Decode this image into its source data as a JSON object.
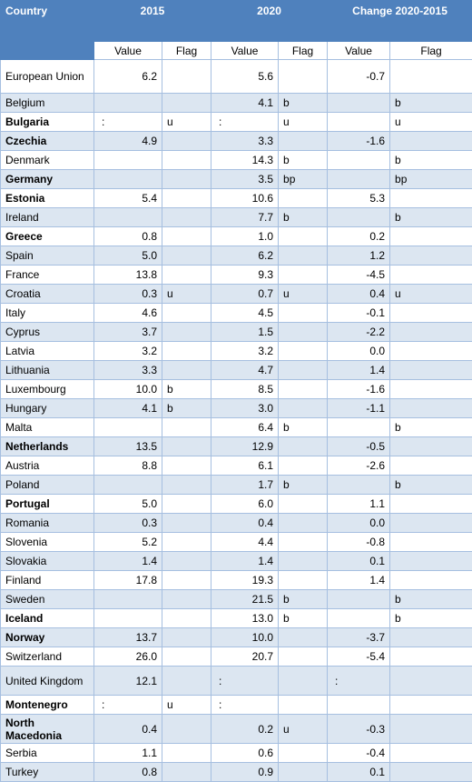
{
  "header": {
    "country": "Country",
    "group_2015": "2015",
    "group_2020": "2020",
    "group_change": "Change 2020-2015",
    "value": "Value",
    "flag": "Flag"
  },
  "rows": [
    {
      "country": "European Union",
      "bold": false,
      "v2015": "6.2",
      "f2015": "",
      "v2020": "5.6",
      "f2020": "",
      "change": "-0.7",
      "fchange": ""
    },
    {
      "country": "Belgium",
      "bold": false,
      "v2015": "",
      "f2015": "",
      "v2020": "4.1",
      "f2020": "b",
      "change": "",
      "fchange": "b"
    },
    {
      "country": "Bulgaria",
      "bold": true,
      "v2015": ":",
      "f2015": "u",
      "v2020": ":",
      "f2020": "u",
      "change": "",
      "fchange": "u"
    },
    {
      "country": "Czechia",
      "bold": true,
      "v2015": "4.9",
      "f2015": "",
      "v2020": "3.3",
      "f2020": "",
      "change": "-1.6",
      "fchange": ""
    },
    {
      "country": "Denmark",
      "bold": false,
      "v2015": "",
      "f2015": "",
      "v2020": "14.3",
      "f2020": "b",
      "change": "",
      "fchange": "b"
    },
    {
      "country": "Germany",
      "bold": true,
      "v2015": "",
      "f2015": "",
      "v2020": "3.5",
      "f2020": "bp",
      "change": "",
      "fchange": "bp"
    },
    {
      "country": "Estonia",
      "bold": true,
      "v2015": "5.4",
      "f2015": "",
      "v2020": "10.6",
      "f2020": "",
      "change": "5.3",
      "fchange": ""
    },
    {
      "country": "Ireland",
      "bold": false,
      "v2015": "",
      "f2015": "",
      "v2020": "7.7",
      "f2020": "b",
      "change": "",
      "fchange": "b"
    },
    {
      "country": "Greece",
      "bold": true,
      "v2015": "0.8",
      "f2015": "",
      "v2020": "1.0",
      "f2020": "",
      "change": "0.2",
      "fchange": ""
    },
    {
      "country": "Spain",
      "bold": false,
      "v2015": "5.0",
      "f2015": "",
      "v2020": "6.2",
      "f2020": "",
      "change": "1.2",
      "fchange": ""
    },
    {
      "country": "France",
      "bold": false,
      "v2015": "13.8",
      "f2015": "",
      "v2020": "9.3",
      "f2020": "",
      "change": "-4.5",
      "fchange": ""
    },
    {
      "country": "Croatia",
      "bold": false,
      "v2015": "0.3",
      "f2015": "u",
      "v2020": "0.7",
      "f2020": "u",
      "change": "0.4",
      "fchange": "u"
    },
    {
      "country": "Italy",
      "bold": false,
      "v2015": "4.6",
      "f2015": "",
      "v2020": "4.5",
      "f2020": "",
      "change": "-0.1",
      "fchange": ""
    },
    {
      "country": "Cyprus",
      "bold": false,
      "v2015": "3.7",
      "f2015": "",
      "v2020": "1.5",
      "f2020": "",
      "change": "-2.2",
      "fchange": ""
    },
    {
      "country": "Latvia",
      "bold": false,
      "v2015": "3.2",
      "f2015": "",
      "v2020": "3.2",
      "f2020": "",
      "change": "0.0",
      "fchange": ""
    },
    {
      "country": "Lithuania",
      "bold": false,
      "v2015": "3.3",
      "f2015": "",
      "v2020": "4.7",
      "f2020": "",
      "change": "1.4",
      "fchange": ""
    },
    {
      "country": "Luxembourg",
      "bold": false,
      "v2015": "10.0",
      "f2015": "b",
      "v2020": "8.5",
      "f2020": "",
      "change": "-1.6",
      "fchange": ""
    },
    {
      "country": "Hungary",
      "bold": false,
      "v2015": "4.1",
      "f2015": "b",
      "v2020": "3.0",
      "f2020": "",
      "change": "-1.1",
      "fchange": ""
    },
    {
      "country": "Malta",
      "bold": false,
      "v2015": "",
      "f2015": "",
      "v2020": "6.4",
      "f2020": "b",
      "change": "",
      "fchange": "b"
    },
    {
      "country": "Netherlands",
      "bold": true,
      "v2015": "13.5",
      "f2015": "",
      "v2020": "12.9",
      "f2020": "",
      "change": "-0.5",
      "fchange": ""
    },
    {
      "country": "Austria",
      "bold": false,
      "v2015": "8.8",
      "f2015": "",
      "v2020": "6.1",
      "f2020": "",
      "change": "-2.6",
      "fchange": ""
    },
    {
      "country": "Poland",
      "bold": false,
      "v2015": "",
      "f2015": "",
      "v2020": "1.7",
      "f2020": "b",
      "change": "",
      "fchange": "b"
    },
    {
      "country": "Portugal",
      "bold": true,
      "v2015": "5.0",
      "f2015": "",
      "v2020": "6.0",
      "f2020": "",
      "change": "1.1",
      "fchange": ""
    },
    {
      "country": "Romania",
      "bold": false,
      "v2015": "0.3",
      "f2015": "",
      "v2020": "0.4",
      "f2020": "",
      "change": "0.0",
      "fchange": ""
    },
    {
      "country": "Slovenia",
      "bold": false,
      "v2015": "5.2",
      "f2015": "",
      "v2020": "4.4",
      "f2020": "",
      "change": "-0.8",
      "fchange": ""
    },
    {
      "country": "Slovakia",
      "bold": false,
      "v2015": "1.4",
      "f2015": "",
      "v2020": "1.4",
      "f2020": "",
      "change": "0.1",
      "fchange": ""
    },
    {
      "country": "Finland",
      "bold": false,
      "v2015": "17.8",
      "f2015": "",
      "v2020": "19.3",
      "f2020": "",
      "change": "1.4",
      "fchange": ""
    },
    {
      "country": "Sweden",
      "bold": false,
      "v2015": "",
      "f2015": "",
      "v2020": "21.5",
      "f2020": "b",
      "change": "",
      "fchange": "b"
    },
    {
      "country": "Iceland",
      "bold": true,
      "v2015": "",
      "f2015": "",
      "v2020": "13.0",
      "f2020": "b",
      "change": "",
      "fchange": "b"
    },
    {
      "country": "Norway",
      "bold": true,
      "v2015": "13.7",
      "f2015": "",
      "v2020": "10.0",
      "f2020": "",
      "change": "-3.7",
      "fchange": ""
    },
    {
      "country": "Switzerland",
      "bold": false,
      "v2015": "26.0",
      "f2015": "",
      "v2020": "20.7",
      "f2020": "",
      "change": "-5.4",
      "fchange": ""
    },
    {
      "country": "United Kingdom",
      "bold": false,
      "v2015": "12.1",
      "f2015": "",
      "v2020": ":",
      "f2020": "",
      "change": ":",
      "fchange": ""
    },
    {
      "country": "Montenegro",
      "bold": true,
      "v2015": ":",
      "f2015": "u",
      "v2020": ":",
      "f2020": "",
      "change": "",
      "fchange": ""
    },
    {
      "country": "North Macedonia",
      "bold": true,
      "v2015": "0.4",
      "f2015": "",
      "v2020": "0.2",
      "f2020": "u",
      "change": "-0.3",
      "fchange": ""
    },
    {
      "country": "Serbia",
      "bold": false,
      "v2015": "1.1",
      "f2015": "",
      "v2020": "0.6",
      "f2020": "",
      "change": "-0.4",
      "fchange": ""
    },
    {
      "country": "Turkey",
      "bold": false,
      "v2015": "0.8",
      "f2015": "",
      "v2020": "0.9",
      "f2020": "",
      "change": "0.1",
      "fchange": ""
    }
  ]
}
